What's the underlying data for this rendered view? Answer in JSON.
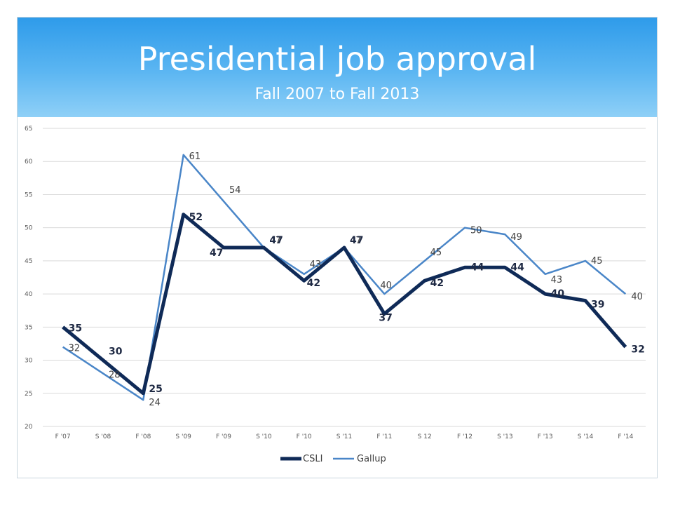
{
  "slide": {
    "title": "Presidential job approval",
    "subtitle": "Fall 2007 to Fall 2013"
  },
  "colors": {
    "header_top": "#2e9bea",
    "header_bottom": "#8fd0f7",
    "csli": "#0f2a57",
    "gallup": "#4a86c8",
    "grid": "#d9d9d9"
  },
  "chart_data": {
    "type": "line",
    "categories": [
      "F '07",
      "S '08",
      "F '08",
      "S '09",
      "F '09",
      "S '10",
      "F '10",
      "S '11",
      "F '11",
      "S 12",
      "F '12",
      "S '13",
      "F '13",
      "S '14",
      "F '14"
    ],
    "series": [
      {
        "name": "CSLI",
        "values": [
          35,
          30,
          25,
          52,
          47,
          47,
          42,
          47,
          37,
          42,
          44,
          44,
          40,
          39,
          32
        ]
      },
      {
        "name": "Gallup",
        "values": [
          32,
          28,
          24,
          61,
          54,
          47,
          43,
          47,
          40,
          45,
          50,
          49,
          43,
          45,
          40
        ]
      }
    ],
    "ylim": [
      20,
      65
    ],
    "yticks": [
      20,
      25,
      30,
      35,
      40,
      45,
      50,
      55,
      60,
      65
    ],
    "grid": true,
    "legend": "bottom"
  }
}
